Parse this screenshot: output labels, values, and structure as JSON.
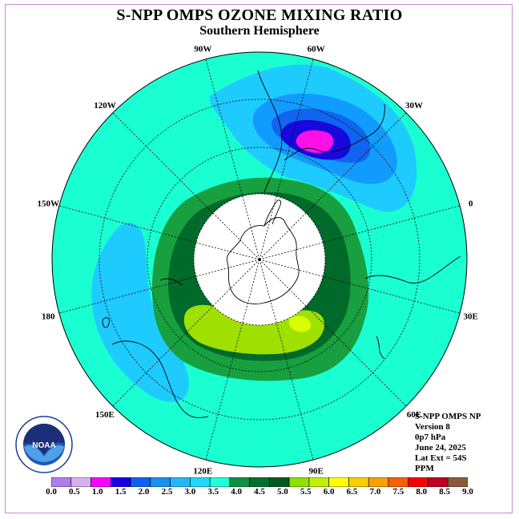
{
  "title": "S-NPP OMPS OZONE MIXING RATIO",
  "subtitle": "Southern Hemisphere",
  "longitude_labels": [
    {
      "text": "0",
      "angle": 0
    },
    {
      "text": "30E",
      "angle": 30
    },
    {
      "text": "60E",
      "angle": 60
    },
    {
      "text": "90E",
      "angle": 90
    },
    {
      "text": "120E",
      "angle": 120
    },
    {
      "text": "150E",
      "angle": 150
    },
    {
      "text": "180",
      "angle": 180
    },
    {
      "text": "150W",
      "angle": 210
    },
    {
      "text": "120W",
      "angle": 240
    },
    {
      "text": "90W",
      "angle": 270
    },
    {
      "text": "60W",
      "angle": 300
    },
    {
      "text": "30W",
      "angle": 330
    }
  ],
  "info": {
    "line1": "S-NPP OMPS NP",
    "line2": "Version 8",
    "line3": "0p7 hPa",
    "line4": "June 24, 2025",
    "line5": "Lat Ext = 54S",
    "line6": "PPM"
  },
  "colorbar": {
    "labels": [
      "0.0",
      "0.5",
      "1.0",
      "1.5",
      "2.0",
      "2.5",
      "3.0",
      "3.5",
      "4.0",
      "4.5",
      "5.0",
      "5.5",
      "6.0",
      "6.5",
      "7.0",
      "7.5",
      "8.0",
      "8.5",
      "9.0"
    ],
    "colors": [
      "#b07ee8",
      "#d8b0f0",
      "#ff00ff",
      "#1800e0",
      "#1060f0",
      "#1890f0",
      "#20b8f8",
      "#20d8ff",
      "#20ffd8",
      "#109040",
      "#007030",
      "#005820",
      "#90e000",
      "#c0f000",
      "#ffff00",
      "#f8d000",
      "#f8a000",
      "#f86000",
      "#f80000",
      "#c00020",
      "#8b5a3c"
    ]
  },
  "field_colors": {
    "background": "#1affd2",
    "light_blue": "#1ecbff",
    "mid_blue": "#129bff",
    "blue": "#1064f0",
    "dark_blue": "#1808dc",
    "magenta": "#ff10e8",
    "green": "#18a040",
    "dark_green": "#006a2a",
    "yellow_green": "#a0e000",
    "lime": "#d8ff00",
    "polar_night": "#ffffff"
  },
  "logo": {
    "text": "NOAA",
    "ring_text": "NATIONAL OCEANIC AND ATMOSPHERIC ADMINISTRATION · U.S. DEPARTMENT OF COMMERCE"
  }
}
